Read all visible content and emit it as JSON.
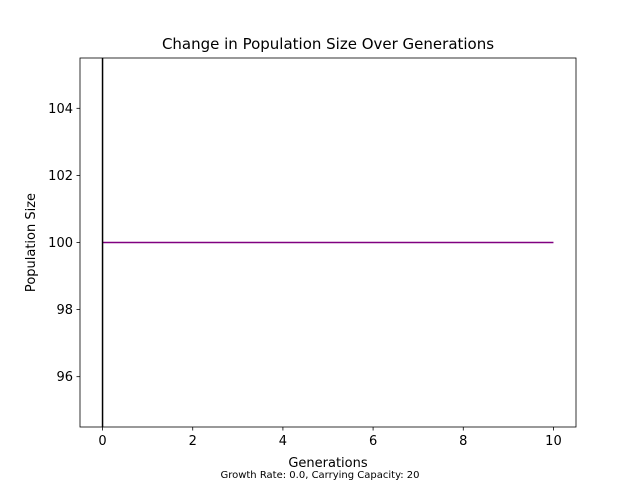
{
  "chart_data": {
    "type": "line",
    "title": "Change in Population Size Over Generations",
    "xlabel": "Generations",
    "ylabel": "Population Size",
    "xlim": [
      -0.5,
      10.5
    ],
    "ylim": [
      94.5,
      105.5
    ],
    "xticks": [
      0,
      2,
      4,
      6,
      8,
      10
    ],
    "yticks": [
      96,
      98,
      100,
      102,
      104
    ],
    "grid": false,
    "series": [
      {
        "color": "#800080",
        "x": [
          0,
          1,
          2,
          3,
          4,
          5,
          6,
          7,
          8,
          9,
          10
        ],
        "y": [
          100,
          100,
          100,
          100,
          100,
          100,
          100,
          100,
          100,
          100,
          100
        ]
      }
    ],
    "vertical_line": {
      "x": 0,
      "color": "#000000"
    },
    "annotation": {
      "text": "Growth Rate: 0.0, Carrying Capacity: 20",
      "color": "#800080"
    }
  }
}
